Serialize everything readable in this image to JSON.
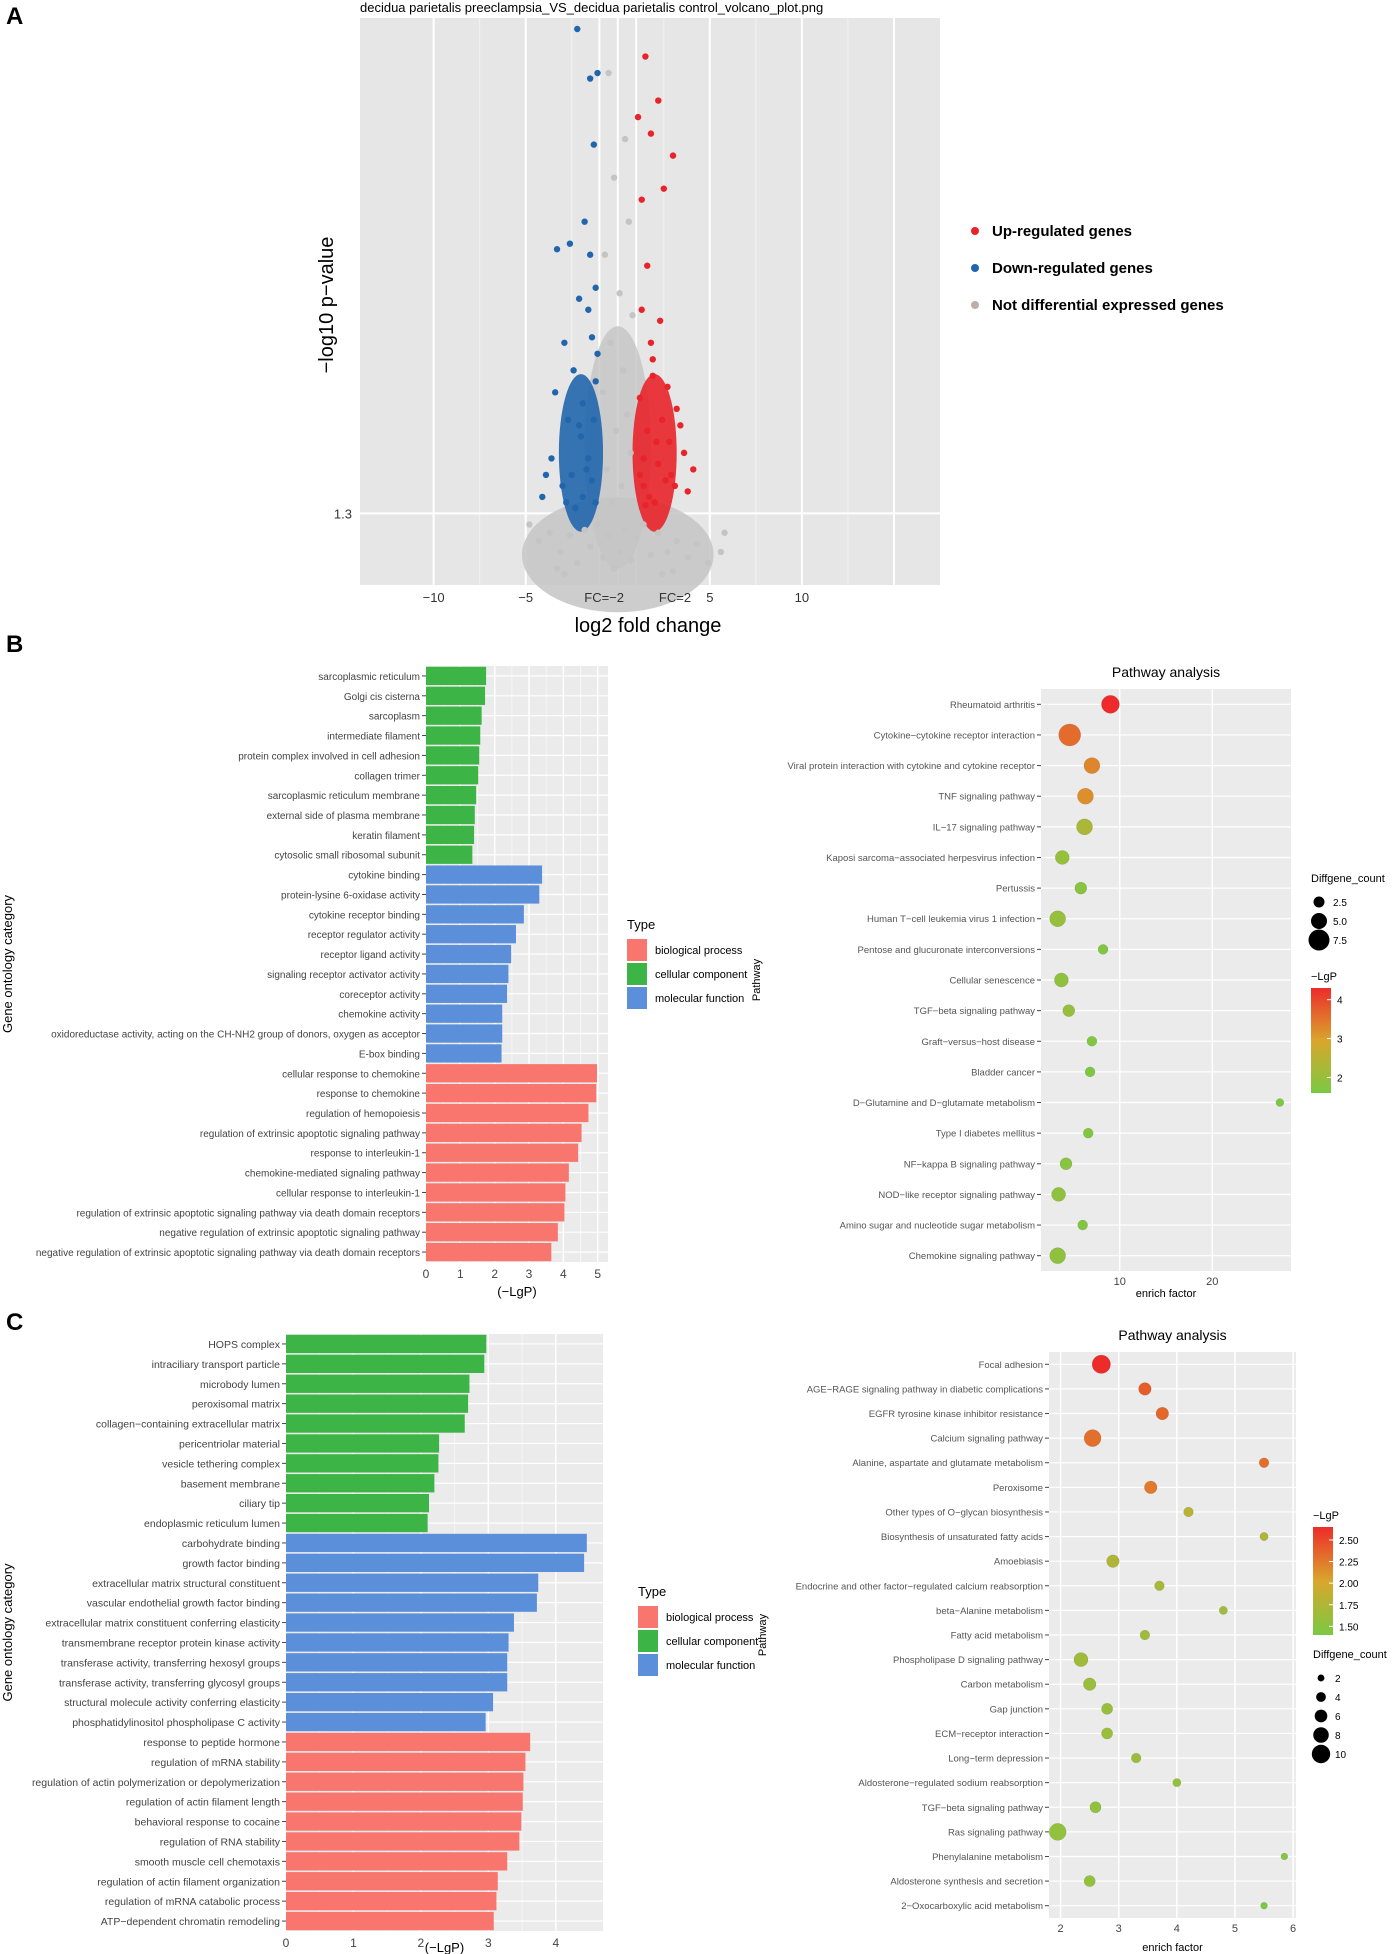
{
  "panel_labels": [
    "A",
    "B",
    "C"
  ],
  "chart_data": [
    {
      "id": "volcano",
      "type": "scatter",
      "title": "decidua parietalis preeclampsia_VS_decidua parietalis control_volcano_plot.png",
      "xlabel": "log2 fold change",
      "ylabel": "−log10 p−value",
      "xlim": [
        -14,
        17.5
      ],
      "ylim": [
        0,
        10.3
      ],
      "xticks": [
        "−10",
        "−5",
        "5",
        "10"
      ],
      "xtick_values": [
        -10,
        -5,
        5,
        10
      ],
      "threshold_label": "1.3",
      "threshold_y": 1.3,
      "fc_labels": [
        "FC=−2",
        "FC=2"
      ],
      "fc_lines": [
        -1,
        1
      ],
      "legend": [
        {
          "label": "Up-regulated genes",
          "color": "#e8232a"
        },
        {
          "label": "Down-regulated genes",
          "color": "#2166ac"
        },
        {
          "label": "Not differential expressed genes",
          "color": "#bfaea6"
        }
      ],
      "series": [
        {
          "name": "Up-regulated genes",
          "color": "#e8232a",
          "points": [
            [
              1.5,
              9.6
            ],
            [
              2.2,
              8.8
            ],
            [
              1.8,
              8.2
            ],
            [
              2.5,
              7.2
            ],
            [
              1.3,
              7.0
            ],
            [
              3.0,
              7.8
            ],
            [
              1.6,
              5.8
            ],
            [
              2.3,
              4.8
            ],
            [
              1.9,
              4.1
            ],
            [
              2.7,
              3.6
            ],
            [
              3.2,
              3.2
            ],
            [
              4.1,
              2.1
            ],
            [
              3.4,
              2.9
            ],
            [
              2.1,
              2.6
            ],
            [
              1.4,
              2.3
            ],
            [
              2.6,
              1.9
            ],
            [
              1.7,
              1.6
            ],
            [
              3.6,
              2.4
            ],
            [
              1.2,
              3.4
            ],
            [
              2.9,
              2.0
            ],
            [
              1.5,
              1.45
            ],
            [
              2.0,
              1.5
            ],
            [
              3.1,
              1.8
            ],
            [
              1.3,
              5.0
            ],
            [
              1.8,
              4.4
            ],
            [
              2.4,
              3.0
            ],
            [
              1.6,
              2.8
            ],
            [
              1.1,
              8.5
            ],
            [
              1.9,
              3.8
            ],
            [
              2.2,
              2.2
            ],
            [
              3.8,
              1.7
            ],
            [
              1.4,
              1.8
            ],
            [
              2.8,
              2.6
            ],
            [
              1.2,
              2.0
            ]
          ]
        },
        {
          "name": "Down-regulated genes",
          "color": "#2166ac",
          "points": [
            [
              -2.2,
              10.1
            ],
            [
              -1.5,
              9.2
            ],
            [
              -1.1,
              9.3
            ],
            [
              -1.3,
              8.0
            ],
            [
              -2.6,
              6.2
            ],
            [
              -3.3,
              6.1
            ],
            [
              -1.8,
              6.6
            ],
            [
              -1.2,
              5.4
            ],
            [
              -1.6,
              5.0
            ],
            [
              -2.1,
              5.2
            ],
            [
              -2.9,
              4.4
            ],
            [
              -1.4,
              4.5
            ],
            [
              -2.4,
              3.9
            ],
            [
              -1.2,
              3.7
            ],
            [
              -1.9,
              3.3
            ],
            [
              -3.4,
              3.5
            ],
            [
              -2.7,
              3.0
            ],
            [
              -1.3,
              3.0
            ],
            [
              -2.0,
              2.7
            ],
            [
              -3.6,
              2.3
            ],
            [
              -1.6,
              2.3
            ],
            [
              -4.1,
              1.6
            ],
            [
              -2.5,
              2.0
            ],
            [
              -3.0,
              1.8
            ],
            [
              -1.4,
              1.9
            ],
            [
              -1.9,
              1.6
            ],
            [
              -2.8,
              1.5
            ],
            [
              -1.2,
              1.5
            ],
            [
              -3.9,
              2.0
            ],
            [
              -2.3,
              1.4
            ],
            [
              -1.5,
              6.0
            ],
            [
              -1.1,
              4.2
            ],
            [
              -2.1,
              2.9
            ],
            [
              -1.7,
              2.1
            ]
          ]
        },
        {
          "name": "Not differential expressed genes",
          "color": "#c4c4c4",
          "points": [
            [
              -0.5,
              9.3
            ],
            [
              0.4,
              8.1
            ],
            [
              -0.2,
              7.4
            ],
            [
              0.6,
              6.6
            ],
            [
              -0.7,
              6.0
            ],
            [
              0.1,
              5.3
            ],
            [
              0.8,
              4.9
            ],
            [
              -0.4,
              4.4
            ],
            [
              0.3,
              3.9
            ],
            [
              -0.8,
              3.5
            ],
            [
              0.5,
              3.1
            ],
            [
              -0.1,
              2.8
            ],
            [
              0.7,
              2.4
            ],
            [
              -0.6,
              2.1
            ],
            [
              0.2,
              1.8
            ],
            [
              -0.3,
              1.5
            ],
            [
              -4.8,
              1.1
            ],
            [
              -4.3,
              0.8
            ],
            [
              -3.7,
              0.95
            ],
            [
              -3.1,
              0.6
            ],
            [
              -2.6,
              0.9
            ],
            [
              -2.2,
              0.4
            ],
            [
              -1.8,
              1.0
            ],
            [
              -1.5,
              0.7
            ],
            [
              -1.1,
              1.1
            ],
            [
              -0.8,
              0.5
            ],
            [
              -0.5,
              0.9
            ],
            [
              -0.2,
              0.3
            ],
            [
              0.1,
              0.6
            ],
            [
              0.4,
              1.0
            ],
            [
              0.7,
              0.45
            ],
            [
              1.0,
              0.85
            ],
            [
              1.4,
              1.1
            ],
            [
              1.8,
              0.55
            ],
            [
              2.2,
              0.95
            ],
            [
              2.7,
              0.6
            ],
            [
              3.2,
              0.8
            ],
            [
              3.8,
              0.5
            ],
            [
              4.3,
              0.75
            ],
            [
              4.9,
              0.4
            ],
            [
              5.8,
              0.95
            ],
            [
              5.6,
              0.6
            ],
            [
              -3.3,
              0.3
            ],
            [
              -2.9,
              0.2
            ],
            [
              3.0,
              0.25
            ],
            [
              2.4,
              0.2
            ]
          ]
        }
      ]
    },
    {
      "id": "go_b",
      "type": "bar",
      "orientation": "horizontal",
      "ylabel": "Gene ontology category",
      "xlabel": "(−LgP)",
      "xlim": [
        0,
        5.3
      ],
      "xticks": [
        0,
        1,
        2,
        3,
        4,
        5
      ],
      "legend_title": "Type",
      "legend": [
        {
          "label": "biological process",
          "color": "#f8766d"
        },
        {
          "label": "cellular component",
          "color": "#3cb446"
        },
        {
          "label": "molecular function",
          "color": "#5b8fd9"
        }
      ],
      "categories": [
        "sarcoplasmic reticulum",
        "Golgi cis cisterna",
        "sarcoplasm",
        "intermediate filament",
        "protein complex involved in cell adhesion",
        "collagen trimer",
        "sarcoplasmic reticulum membrane",
        "external side of plasma membrane",
        "keratin filament",
        "cytosolic small ribosomal subunit",
        "cytokine binding",
        "protein-lysine 6-oxidase activity",
        "cytokine receptor binding",
        "receptor regulator activity",
        "receptor ligand activity",
        "signaling receptor activator activity",
        "coreceptor activity",
        "chemokine activity",
        "oxidoreductase activity, acting on the CH-NH2 group of donors, oxygen as acceptor",
        "E-box binding",
        "cellular response to chemokine",
        "response to chemokine",
        "regulation of hemopoiesis",
        "regulation of extrinsic apoptotic signaling pathway",
        "response to interleukin-1",
        "chemokine-mediated signaling pathway",
        "cellular response to interleukin-1",
        "regulation of extrinsic apoptotic signaling pathway via death domain receptors",
        "negative regulation of extrinsic apoptotic signaling pathway",
        "negative regulation of extrinsic apoptotic signaling pathway via death domain receptors"
      ],
      "values": [
        1.75,
        1.72,
        1.62,
        1.58,
        1.55,
        1.52,
        1.46,
        1.42,
        1.4,
        1.35,
        3.38,
        3.3,
        2.85,
        2.62,
        2.48,
        2.4,
        2.36,
        2.22,
        2.22,
        2.2,
        4.98,
        4.96,
        4.73,
        4.53,
        4.43,
        4.16,
        4.06,
        4.03,
        3.84,
        3.65
      ],
      "types": [
        "CC",
        "CC",
        "CC",
        "CC",
        "CC",
        "CC",
        "CC",
        "CC",
        "CC",
        "CC",
        "MF",
        "MF",
        "MF",
        "MF",
        "MF",
        "MF",
        "MF",
        "MF",
        "MF",
        "MF",
        "BP",
        "BP",
        "BP",
        "BP",
        "BP",
        "BP",
        "BP",
        "BP",
        "BP",
        "BP"
      ]
    },
    {
      "id": "pathway_b",
      "type": "scatter",
      "title": "Pathway analysis",
      "xlabel": "enrich factor",
      "ylabel": "Pathway",
      "xlim": [
        1.5,
        28.5
      ],
      "xticks": [
        10,
        20
      ],
      "size_legend_title": "Diffgene_count",
      "size_legend": [
        "2.5",
        "5.0",
        "7.5"
      ],
      "size_legend_values": [
        2.5,
        5,
        7.5
      ],
      "color_legend_title": "−LgP",
      "color_legend_ticks": [
        "4",
        "3",
        "2"
      ],
      "color_legend_values": [
        4,
        3,
        2
      ],
      "color_range": [
        1.6,
        4.3
      ],
      "categories": [
        "Rheumatoid arthritis",
        "Cytokine−cytokine receptor interaction",
        "Viral protein interaction with cytokine and cytokine receptor",
        "TNF signaling pathway",
        "IL−17 signaling pathway",
        "Kaposi sarcoma−associated herpesvirus infection",
        "Pertussis",
        "Human T−cell leukemia virus 1 infection",
        "Pentose and glucuronate interconversions",
        "Cellular senescence",
        "TGF−beta signaling pathway",
        "Graft−versus−host disease",
        "Bladder cancer",
        "D−Glutamine and D−glutamate metabolism",
        "Type I diabetes mellitus",
        "NF−kappa B signaling pathway",
        "NOD−like receptor signaling pathway",
        "Amino sugar and nucleotide sugar metabolism",
        "Chemokine signaling pathway"
      ],
      "enrich_factor": [
        9.0,
        4.6,
        7.0,
        6.3,
        6.2,
        3.8,
        5.8,
        3.3,
        8.2,
        3.7,
        4.5,
        7.0,
        6.8,
        27.3,
        6.6,
        4.2,
        3.4,
        6.0,
        3.3
      ],
      "minus_lgp": [
        4.3,
        3.6,
        3.3,
        3.2,
        2.3,
        2.0,
        1.8,
        2.0,
        1.7,
        1.9,
        2.0,
        1.7,
        1.7,
        1.6,
        1.7,
        1.8,
        1.9,
        1.7,
        1.9
      ],
      "count": [
        6,
        8,
        5,
        5,
        5,
        4,
        3,
        5,
        2,
        4,
        3,
        2,
        2,
        1,
        2,
        3,
        4,
        2,
        5
      ]
    },
    {
      "id": "go_c",
      "type": "bar",
      "orientation": "horizontal",
      "ylabel": "Gene ontology category",
      "xlabel": "(−LgP)",
      "xlim": [
        0,
        4.7
      ],
      "xticks": [
        0,
        1,
        2,
        3,
        4
      ],
      "legend_title": "Type",
      "legend": [
        {
          "label": "biological process",
          "color": "#f8766d"
        },
        {
          "label": "cellular component",
          "color": "#3cb446"
        },
        {
          "label": "molecular function",
          "color": "#5b8fd9"
        }
      ],
      "categories": [
        "HOPS complex",
        "intraciliary transport particle",
        "microbody lumen",
        "peroxisomal matrix",
        "collagen−containing extracellular matrix",
        "pericentriolar material",
        "vesicle tethering complex",
        "basement membrane",
        "ciliary tip",
        "endoplasmic reticulum lumen",
        "carbohydrate binding",
        "growth factor binding",
        "extracellular matrix structural constituent",
        "vascular endothelial growth factor binding",
        "extracellular matrix constituent conferring elasticity",
        "transmembrane receptor protein kinase activity",
        "transferase activity, transferring hexosyl groups",
        "transferase activity, transferring glycosyl groups",
        "structural molecule activity conferring elasticity",
        "phosphatidylinositol phospholipase C activity",
        "response to peptide hormone",
        "regulation of mRNA stability",
        "regulation of actin polymerization or depolymerization",
        "regulation of actin filament length",
        "behavioral response to cocaine",
        "regulation of RNA stability",
        "smooth muscle cell chemotaxis",
        "regulation of actin filament organization",
        "regulation of mRNA catabolic process",
        "ATP−dependent chromatin remodeling"
      ],
      "values": [
        2.97,
        2.94,
        2.72,
        2.7,
        2.65,
        2.27,
        2.26,
        2.2,
        2.12,
        2.1,
        4.46,
        4.42,
        3.74,
        3.72,
        3.38,
        3.3,
        3.28,
        3.28,
        3.07,
        2.96,
        3.62,
        3.55,
        3.52,
        3.51,
        3.49,
        3.46,
        3.28,
        3.14,
        3.12,
        3.08
      ],
      "types": [
        "CC",
        "CC",
        "CC",
        "CC",
        "CC",
        "CC",
        "CC",
        "CC",
        "CC",
        "CC",
        "MF",
        "MF",
        "MF",
        "MF",
        "MF",
        "MF",
        "MF",
        "MF",
        "MF",
        "MF",
        "BP",
        "BP",
        "BP",
        "BP",
        "BP",
        "BP",
        "BP",
        "BP",
        "BP",
        "BP"
      ]
    },
    {
      "id": "pathway_c",
      "type": "scatter",
      "title": "Pathway analysis",
      "xlabel": "enrich factor",
      "ylabel": "Pathway",
      "xlim": [
        1.8,
        6.05
      ],
      "xticks": [
        2,
        3,
        4,
        5,
        6
      ],
      "color_legend_title": "−LgP",
      "color_legend_ticks": [
        "2.50",
        "2.25",
        "2.00",
        "1.75",
        "1.50"
      ],
      "color_legend_values": [
        2.5,
        2.25,
        2.0,
        1.75,
        1.5
      ],
      "color_range": [
        1.4,
        2.65
      ],
      "size_legend_title": "Diffgene_count",
      "size_legend": [
        "2",
        "4",
        "6",
        "8",
        "10"
      ],
      "size_legend_values": [
        2,
        4,
        6,
        8,
        10
      ],
      "categories": [
        "Focal adhesion",
        "AGE−RAGE signaling pathway in diabetic complications",
        "EGFR tyrosine kinase inhibitor resistance",
        "Calcium signaling pathway",
        "Alanine, aspartate and glutamate metabolism",
        "Peroxisome",
        "Other types of O−glycan biosynthesis",
        "Biosynthesis of unsaturated fatty acids",
        "Amoebiasis",
        "Endocrine and other factor−regulated calcium reabsorption",
        "beta−Alanine metabolism",
        "Fatty acid metabolism",
        "Phospholipase D signaling pathway",
        "Carbon metabolism",
        "Gap junction",
        "ECM−receptor interaction",
        "Long−term depression",
        "Aldosterone−regulated sodium reabsorption",
        "TGF−beta signaling pathway",
        "Ras signaling pathway",
        "Phenylalanine metabolism",
        "Aldosterone synthesis and secretion",
        "2−Oxocarboxylic acid metabolism"
      ],
      "enrich_factor": [
        2.7,
        3.45,
        3.75,
        2.55,
        5.5,
        3.55,
        4.2,
        5.5,
        2.9,
        3.7,
        4.8,
        3.45,
        2.35,
        2.5,
        2.8,
        2.8,
        3.3,
        4.0,
        2.6,
        1.95,
        5.85,
        2.5,
        5.5
      ],
      "minus_lgp": [
        2.65,
        2.4,
        2.35,
        2.3,
        2.3,
        2.25,
        1.8,
        1.75,
        1.75,
        1.7,
        1.65,
        1.65,
        1.65,
        1.6,
        1.6,
        1.6,
        1.6,
        1.55,
        1.55,
        1.55,
        1.45,
        1.55,
        1.4
      ],
      "count": [
        10,
        6,
        6,
        9,
        4,
        6,
        4,
        3,
        6,
        4,
        3,
        4,
        7,
        6,
        5,
        5,
        4,
        3,
        5,
        9,
        2,
        5,
        2
      ]
    }
  ]
}
